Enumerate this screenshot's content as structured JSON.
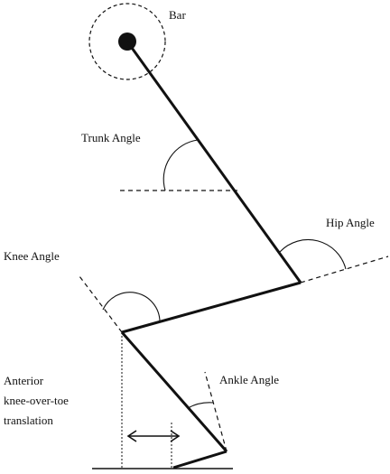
{
  "labels": {
    "bar": "Bar",
    "trunk_angle": "Trunk Angle",
    "hip_angle": "Hip Angle",
    "knee_angle": "Knee Angle",
    "ankle_angle": "Ankle Angle",
    "translation_line1": "Anterior",
    "translation_line2": "knee-over-toe",
    "translation_line3": "translation"
  },
  "colors": {
    "ink": "#111111",
    "background": "#ffffff"
  }
}
